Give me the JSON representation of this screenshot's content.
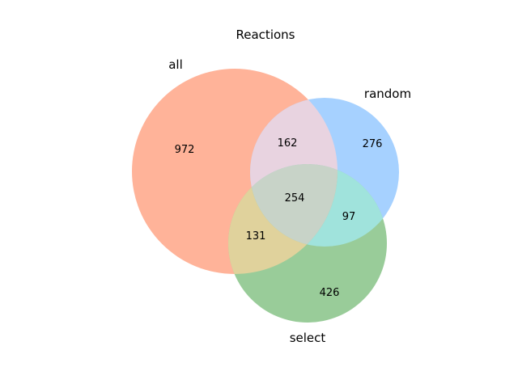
{
  "figure": {
    "title": "Reactions"
  },
  "sets": {
    "all": {
      "label": "all",
      "color": "#ffb399"
    },
    "random": {
      "label": "random",
      "color": "#a6d1ff"
    },
    "select": {
      "label": "select",
      "color": "#99cc99"
    }
  },
  "regions": {
    "all_only": {
      "value": "972",
      "color": "#ffb399"
    },
    "random_only": {
      "value": "276",
      "color": "#a6d1ff"
    },
    "select_only": {
      "value": "426",
      "color": "#99cc99"
    },
    "all_random": {
      "value": "162",
      "color": "#e8d3e0"
    },
    "all_select": {
      "value": "131",
      "color": "#e0d29c"
    },
    "random_select": {
      "value": "97",
      "color": "#a0e3dc"
    },
    "all_random_select": {
      "value": "254",
      "color": "#c8d3c8"
    }
  }
}
